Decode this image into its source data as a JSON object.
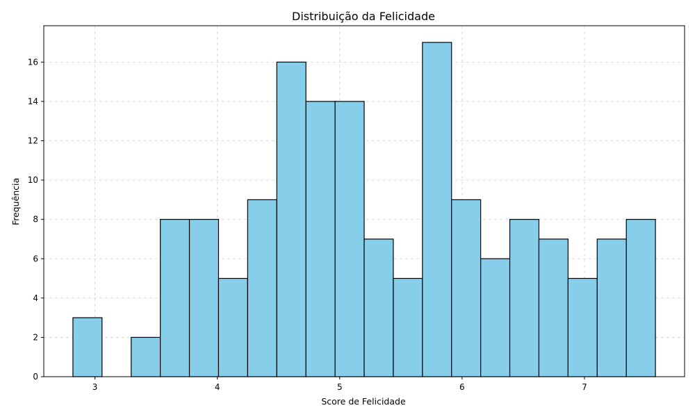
{
  "chart_data": {
    "type": "bar",
    "title": "Distribuição da Felicidade",
    "xlabel": "Score de Felicidade",
    "ylabel": "Frequência",
    "bin_edges": [
      2.82,
      3.058,
      3.296,
      3.534,
      3.772,
      4.01,
      4.248,
      4.486,
      4.724,
      4.962,
      5.2,
      5.438,
      5.676,
      5.914,
      6.152,
      6.39,
      6.628,
      6.866,
      7.104,
      7.342,
      7.58
    ],
    "values": [
      3,
      0,
      2,
      8,
      8,
      5,
      9,
      16,
      14,
      14,
      7,
      5,
      17,
      9,
      6,
      8,
      7,
      5,
      7,
      8
    ],
    "xlim": [
      2.582,
      7.818
    ],
    "ylim": [
      0,
      17.85
    ],
    "xticks": [
      3,
      4,
      5,
      6,
      7
    ],
    "yticks": [
      0,
      2,
      4,
      6,
      8,
      10,
      12,
      14,
      16
    ],
    "grid": true,
    "bar_color": "#87CEEB",
    "edge_color": "#000000"
  }
}
